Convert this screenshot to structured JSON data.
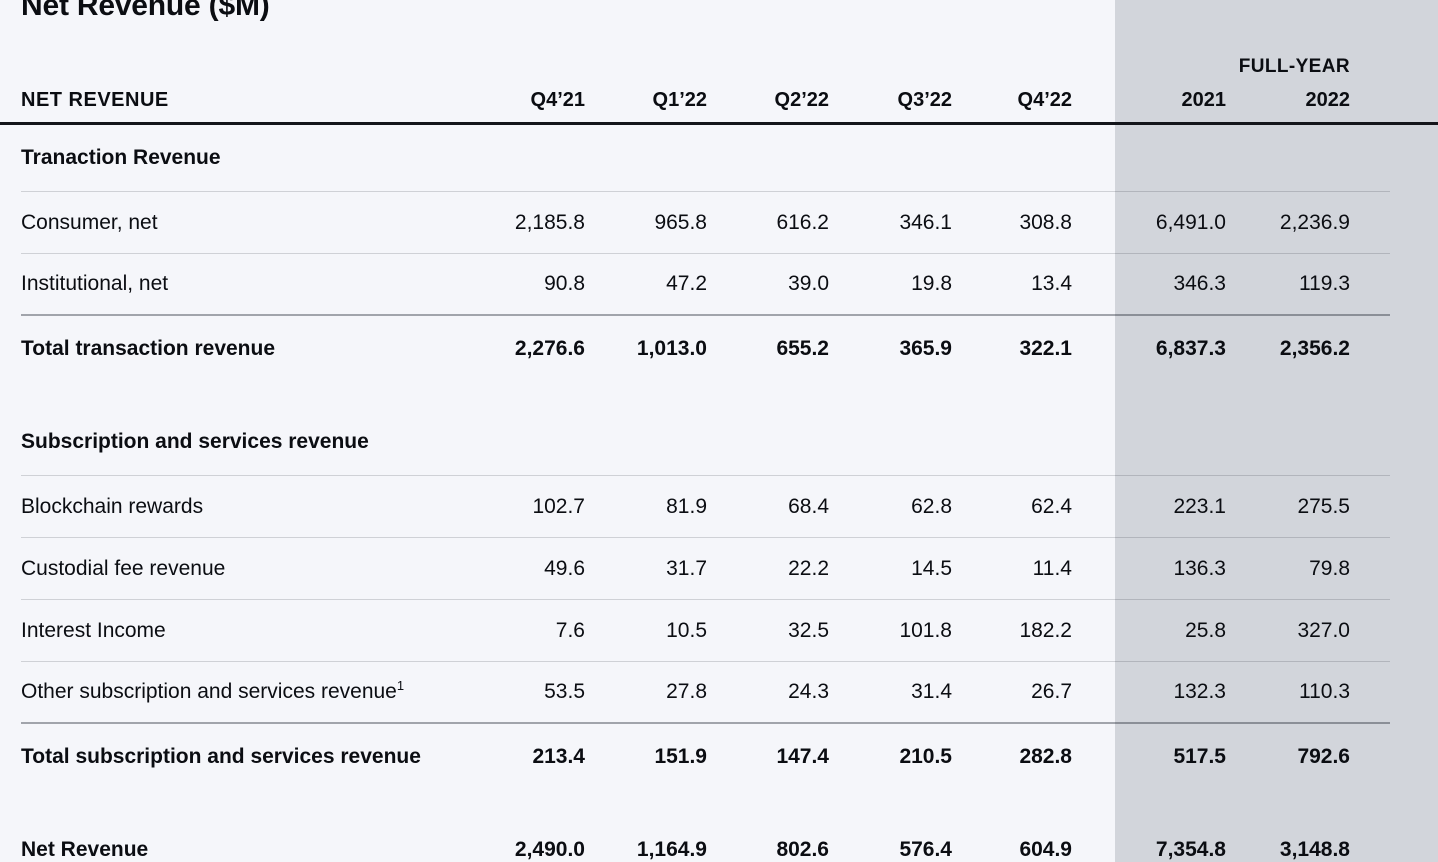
{
  "colors": {
    "page_bg": "#f5f6fa",
    "band_bg": "#d2d5db",
    "text": "#0b0d12",
    "header_rule": "#13151a",
    "light_rule": "rgba(15,20,30,0.16)",
    "strong_rule": "rgba(15,20,30,0.36)"
  },
  "chart_data": {
    "type": "table",
    "title": "Net Revenue ($M)",
    "group_header": "FULL-YEAR",
    "columns": [
      "NET REVENUE",
      "Q4’21",
      "Q1’22",
      "Q2’22",
      "Q3’22",
      "Q4’22",
      "2021",
      "2022"
    ],
    "rows": [
      {
        "type": "section",
        "label": "Tranaction Revenue",
        "values": [
          "",
          "",
          "",
          "",
          "",
          "",
          ""
        ]
      },
      {
        "type": "data",
        "label": "Consumer, net",
        "values": [
          "2,185.8",
          "965.8",
          "616.2",
          "346.1",
          "308.8",
          "6,491.0",
          "2,236.9"
        ]
      },
      {
        "type": "data",
        "label": "Institutional, net",
        "values": [
          "90.8",
          "47.2",
          "39.0",
          "19.8",
          "13.4",
          "346.3",
          "119.3"
        ]
      },
      {
        "type": "total",
        "label": "Total transaction revenue",
        "values": [
          "2,276.6",
          "1,013.0",
          "655.2",
          "365.9",
          "322.1",
          "6,837.3",
          "2,356.2"
        ]
      },
      {
        "type": "spacer"
      },
      {
        "type": "section",
        "label": "Subscription and services revenue",
        "values": [
          "",
          "",
          "",
          "",
          "",
          "",
          ""
        ]
      },
      {
        "type": "data",
        "label": "Blockchain rewards",
        "values": [
          "102.7",
          "81.9",
          "68.4",
          "62.8",
          "62.4",
          "223.1",
          "275.5"
        ]
      },
      {
        "type": "data",
        "label": "Custodial fee revenue",
        "values": [
          "49.6",
          "31.7",
          "22.2",
          "14.5",
          "11.4",
          "136.3",
          "79.8"
        ]
      },
      {
        "type": "data",
        "label": "Interest Income",
        "values": [
          "7.6",
          "10.5",
          "32.5",
          "101.8",
          "182.2",
          "25.8",
          "327.0"
        ]
      },
      {
        "type": "data",
        "label": "Other subscription and services revenue",
        "label_footnote": "1",
        "values": [
          "53.5",
          "27.8",
          "24.3",
          "31.4",
          "26.7",
          "132.3",
          "110.3"
        ]
      },
      {
        "type": "total",
        "label": "Total subscription and services revenue",
        "values": [
          "213.4",
          "151.9",
          "147.4",
          "210.5",
          "282.8",
          "517.5",
          "792.6"
        ]
      },
      {
        "type": "spacer"
      },
      {
        "type": "total",
        "label": "Net Revenue",
        "values": [
          "2,490.0",
          "1,164.9",
          "802.6",
          "576.4",
          "604.9",
          "7,354.8",
          "3,148.8"
        ]
      }
    ]
  }
}
